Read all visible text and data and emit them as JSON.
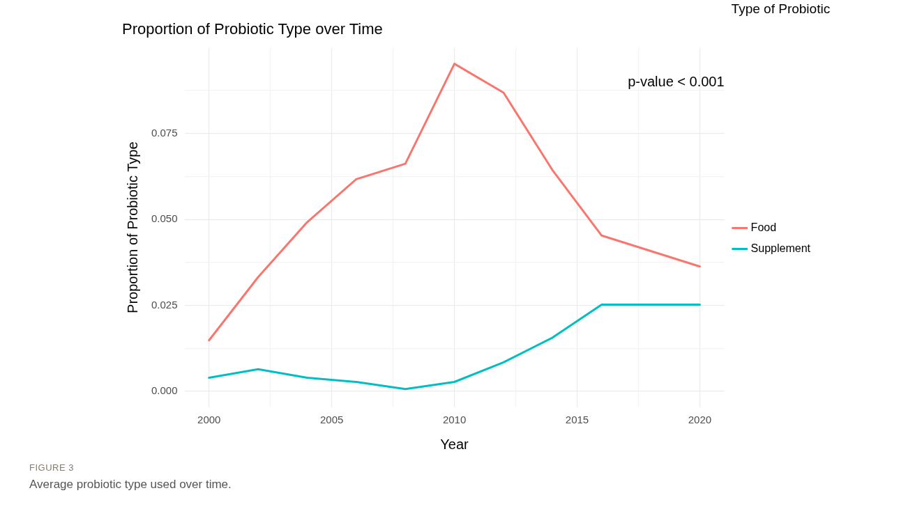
{
  "chart_data": {
    "type": "line",
    "title": "Proportion of Probiotic Type over Time",
    "xlabel": "Year",
    "ylabel": "Proportion of Probiotic Type",
    "legend_title": "Type of Probiotic",
    "x": [
      2000,
      2002,
      2004,
      2006,
      2008,
      2010,
      2012,
      2014,
      2016,
      2018,
      2020
    ],
    "series": [
      {
        "name": "Food",
        "color": "#f8766d",
        "values": [
          0.0148,
          0.0332,
          0.0492,
          0.0617,
          0.0662,
          0.0953,
          0.0869,
          0.0643,
          0.0453,
          0.0408,
          0.0363
        ]
      },
      {
        "name": "Supplement",
        "color": "#00bfc4",
        "values": [
          0.0039,
          0.0064,
          0.0039,
          0.0027,
          0.0006,
          0.0027,
          0.0084,
          0.0156,
          0.0252,
          0.0252,
          0.0252
        ]
      }
    ],
    "xlim": [
      1999,
      2021
    ],
    "ylim": [
      -0.0047,
      0.1
    ],
    "xticks": [
      2000,
      {
        "value": 2002.5,
        "label": null
      },
      2005,
      {
        "value": 2007.5,
        "label": null
      },
      2010,
      {
        "value": 2012.5,
        "label": null
      },
      2015,
      {
        "value": 2017.5,
        "label": null
      },
      2020
    ],
    "yticks": [
      {
        "value": 0,
        "label": "0.000"
      },
      {
        "value": 0.0125,
        "label": null
      },
      {
        "value": 0.025,
        "label": "0.025"
      },
      {
        "value": 0.0375,
        "label": null
      },
      {
        "value": 0.05,
        "label": "0.050"
      },
      {
        "value": 0.0625,
        "label": null
      },
      {
        "value": 0.075,
        "label": "0.075"
      },
      {
        "value": 0.0875,
        "label": null
      }
    ],
    "grid": true,
    "legend": "right",
    "marker": "none",
    "line_style": "solid",
    "annotations": [
      "p-value < 0.001",
      "FIGURE 3",
      "Average probiotic type used over time."
    ]
  }
}
